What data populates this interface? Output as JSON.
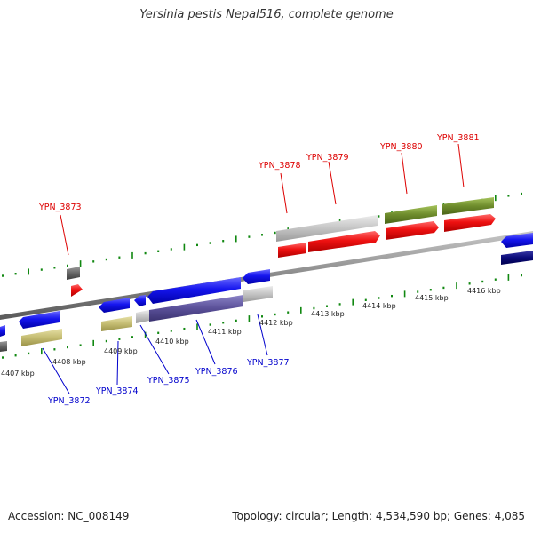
{
  "title": "Yersinia pestis Nepal516, complete genome",
  "footer": {
    "accession": "Accession: NC_008149",
    "summary": "Topology: circular; Length: 4,534,590 bp; Genes: 4,085"
  },
  "colors": {
    "forward_cds": "#ee1111",
    "reverse_cds": "#1111ee",
    "pseudo": "#c0c0c0",
    "forward_label": "#dd0000",
    "reverse_label": "#0000cc",
    "backbone": "#8a8a8a",
    "tick": "#118811"
  },
  "kbp_labels": [
    "4407 kbp",
    "4408 kbp",
    "4409 kbp",
    "4410 kbp",
    "4411 kbp",
    "4412 kbp",
    "4413 kbp",
    "4414 kbp",
    "4415 kbp",
    "4416 kbp"
  ],
  "forward_genes": [
    "YPN_3873",
    "YPN_3878",
    "YPN_3879",
    "YPN_3880",
    "YPN_3881"
  ],
  "reverse_genes": [
    "YPN_3872",
    "YPN_3874",
    "YPN_3875",
    "YPN_3876",
    "YPN_3877"
  ]
}
